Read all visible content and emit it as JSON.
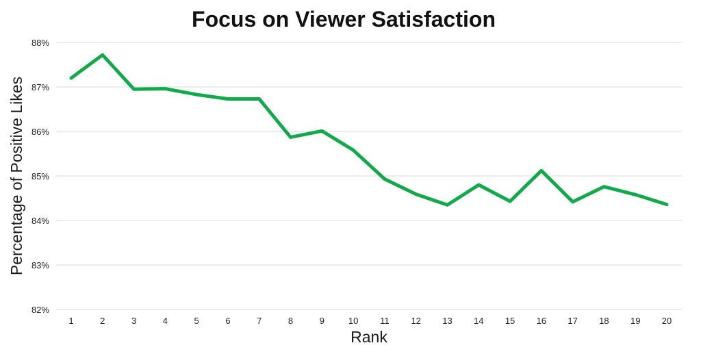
{
  "chart_data": {
    "type": "line",
    "title": "Focus on Viewer Satisfaction",
    "xlabel": "Rank",
    "ylabel": "Percentage of Positive Likes",
    "x": [
      1,
      2,
      3,
      4,
      5,
      6,
      7,
      8,
      9,
      10,
      11,
      12,
      13,
      14,
      15,
      16,
      17,
      18,
      19,
      20
    ],
    "y_tick_labels": [
      "82%",
      "83%",
      "84%",
      "85%",
      "86%",
      "87%",
      "88%"
    ],
    "ylim": [
      82,
      88
    ],
    "grid": true,
    "legend": "none",
    "series": [
      {
        "color": "#12a94a",
        "values": [
          87.2,
          87.72,
          86.95,
          86.96,
          86.83,
          86.73,
          86.73,
          85.87,
          86.01,
          85.58,
          84.93,
          84.59,
          84.35,
          84.8,
          84.43,
          85.12,
          84.42,
          84.76,
          84.58,
          84.36
        ]
      }
    ]
  }
}
